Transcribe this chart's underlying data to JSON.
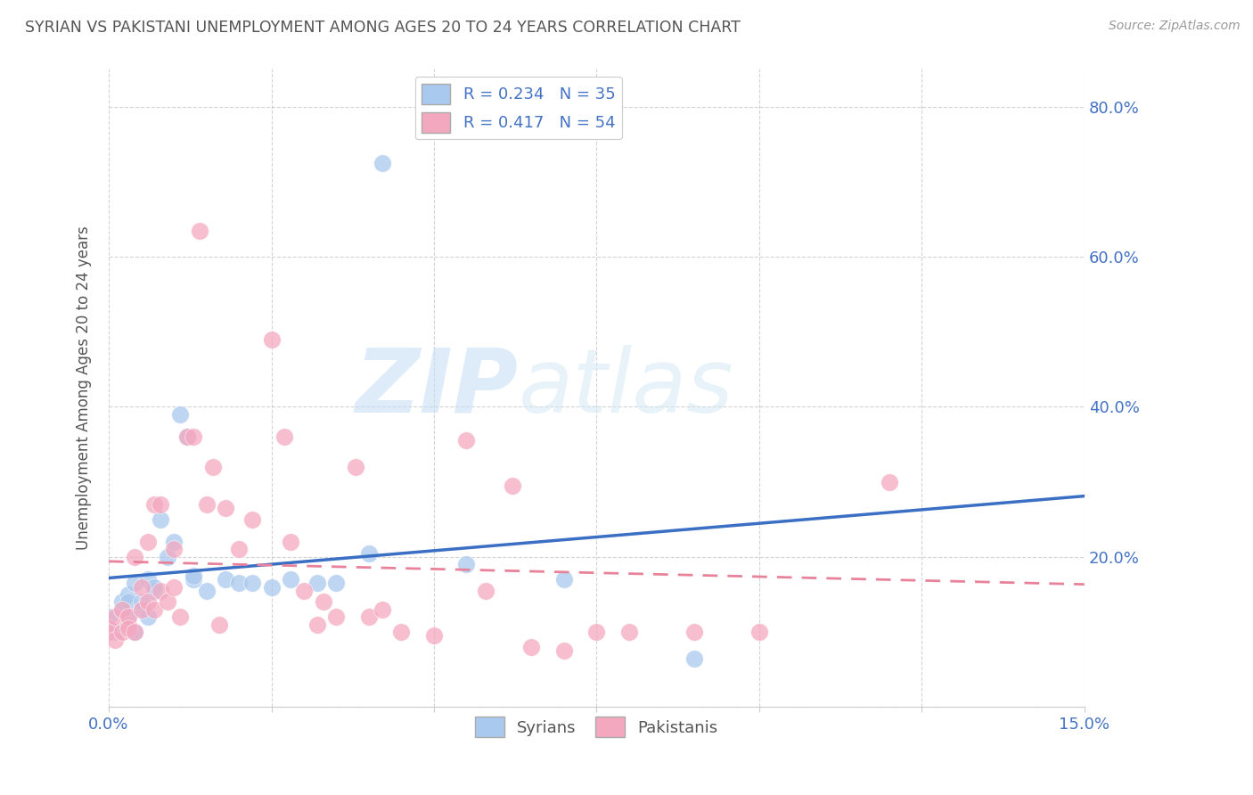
{
  "title": "SYRIAN VS PAKISTANI UNEMPLOYMENT AMONG AGES 20 TO 24 YEARS CORRELATION CHART",
  "source": "Source: ZipAtlas.com",
  "ylabel": "Unemployment Among Ages 20 to 24 years",
  "xlim": [
    0,
    0.15
  ],
  "ylim": [
    0,
    0.85
  ],
  "xticks": [
    0.0,
    0.15
  ],
  "xtick_labels": [
    "0.0%",
    "15.0%"
  ],
  "yticks": [
    0.0,
    0.2,
    0.4,
    0.6,
    0.8
  ],
  "ytick_labels_right": [
    "",
    "20.0%",
    "40.0%",
    "60.0%",
    "80.0%"
  ],
  "syrian_color": "#aac9ee",
  "pakistani_color": "#f4a8c0",
  "syrian_line_color": "#3a6fc4",
  "pakistani_line_color": "#e8829a",
  "R_syrian": 0.234,
  "N_syrian": 35,
  "R_pakistani": 0.417,
  "N_pakistani": 54,
  "legend_label_syrian": "Syrians",
  "legend_label_pakistani": "Pakistanis",
  "syrian_x": [
    0.0,
    0.001,
    0.002,
    0.002,
    0.003,
    0.003,
    0.003,
    0.004,
    0.004,
    0.005,
    0.005,
    0.006,
    0.006,
    0.007,
    0.007,
    0.008,
    0.009,
    0.01,
    0.011,
    0.012,
    0.013,
    0.013,
    0.015,
    0.018,
    0.02,
    0.022,
    0.025,
    0.028,
    0.032,
    0.035,
    0.04,
    0.042,
    0.055,
    0.07,
    0.09
  ],
  "syrian_y": [
    0.12,
    0.1,
    0.13,
    0.14,
    0.12,
    0.15,
    0.14,
    0.1,
    0.165,
    0.13,
    0.14,
    0.12,
    0.17,
    0.155,
    0.16,
    0.25,
    0.2,
    0.22,
    0.39,
    0.36,
    0.17,
    0.175,
    0.155,
    0.17,
    0.165,
    0.165,
    0.16,
    0.17,
    0.165,
    0.165,
    0.205,
    0.725,
    0.19,
    0.17,
    0.065
  ],
  "pakistani_x": [
    0.0,
    0.0,
    0.001,
    0.001,
    0.002,
    0.002,
    0.003,
    0.003,
    0.003,
    0.004,
    0.004,
    0.005,
    0.005,
    0.006,
    0.006,
    0.007,
    0.007,
    0.008,
    0.008,
    0.009,
    0.01,
    0.01,
    0.011,
    0.012,
    0.013,
    0.014,
    0.015,
    0.016,
    0.017,
    0.018,
    0.02,
    0.022,
    0.025,
    0.027,
    0.028,
    0.03,
    0.032,
    0.033,
    0.035,
    0.038,
    0.04,
    0.042,
    0.045,
    0.05,
    0.055,
    0.058,
    0.062,
    0.065,
    0.07,
    0.075,
    0.08,
    0.09,
    0.1,
    0.12
  ],
  "pakistani_y": [
    0.1,
    0.105,
    0.12,
    0.09,
    0.1,
    0.13,
    0.11,
    0.12,
    0.105,
    0.1,
    0.2,
    0.13,
    0.16,
    0.14,
    0.22,
    0.27,
    0.13,
    0.155,
    0.27,
    0.14,
    0.16,
    0.21,
    0.12,
    0.36,
    0.36,
    0.635,
    0.27,
    0.32,
    0.11,
    0.265,
    0.21,
    0.25,
    0.49,
    0.36,
    0.22,
    0.155,
    0.11,
    0.14,
    0.12,
    0.32,
    0.12,
    0.13,
    0.1,
    0.095,
    0.355,
    0.155,
    0.295,
    0.08,
    0.075,
    0.1,
    0.1,
    0.1,
    0.1,
    0.3
  ],
  "watermark_zip": "ZIP",
  "watermark_atlas": "atlas",
  "background_color": "#ffffff",
  "grid_color": "#c8c8c8",
  "title_color": "#555555",
  "tick_color": "#4472c4",
  "label_color": "#555555"
}
